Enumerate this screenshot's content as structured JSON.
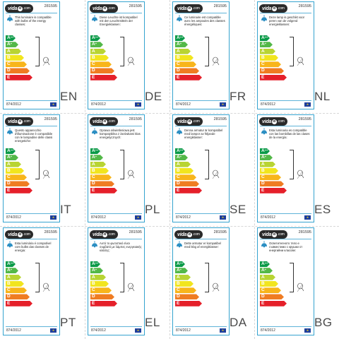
{
  "brand": {
    "name": "vida",
    "suffix": "xl",
    "domain": ".com"
  },
  "product_code": "281595",
  "regulation": "874/2012",
  "eu_flag": "eu-flag-icon",
  "energy_classes": [
    {
      "letter": "A",
      "plus": "++",
      "color": "#0b9a48"
    },
    {
      "letter": "A",
      "plus": "+",
      "color": "#53b848"
    },
    {
      "letter": "A",
      "plus": "",
      "color": "#b8d433"
    },
    {
      "letter": "B",
      "plus": "",
      "color": "#f1e51e"
    },
    {
      "letter": "C",
      "plus": "",
      "color": "#f8b51b"
    },
    {
      "letter": "D",
      "plus": "",
      "color": "#ef7c22"
    },
    {
      "letter": "E",
      "plus": "",
      "color": "#e5202a"
    }
  ],
  "labels": [
    {
      "lang": "EN",
      "text": "This luminaire is compatible with bulbs of the energy classes:"
    },
    {
      "lang": "DE",
      "text": "Diese Leuchte ist kompatibel mit den Leuchtmitteln der Energieklassen:"
    },
    {
      "lang": "FR",
      "text": "Ce luminaire est compatible avec les ampoules des classes énergétiques:"
    },
    {
      "lang": "NL",
      "text": "Deze lamp is geschikt voor peren van de volgend energieklassen:"
    },
    {
      "lang": "IT",
      "text": "Questo apparecchio d'illuminazione è compatibile con le lampadine delle classi energetiche:"
    },
    {
      "lang": "PL",
      "text": "Oprawa oświetleniowa jest kompatybilna z żarówkami klas energetycznych:"
    },
    {
      "lang": "SE",
      "text": "Denna armatur är kompatibel med lampor av följande energiklasser:"
    },
    {
      "lang": "ES",
      "text": "Esta luminaria es compatible con las bombillas de las clases de la energía:"
    },
    {
      "lang": "PT",
      "text": "Esta luminária é compatível com bulbs das classes de energia:"
    },
    {
      "lang": "EL",
      "text": "Αυτό το φωτιστικό είναι συμβατό με λάμπες ενεργειακής κλάσης:"
    },
    {
      "lang": "DA",
      "text": "Dette armatur er kompatibel med lsbg af energiklasser:"
    },
    {
      "lang": "BG",
      "text": "Осветителното тяло е съвместимо с крушки от енергийни класове:"
    }
  ]
}
